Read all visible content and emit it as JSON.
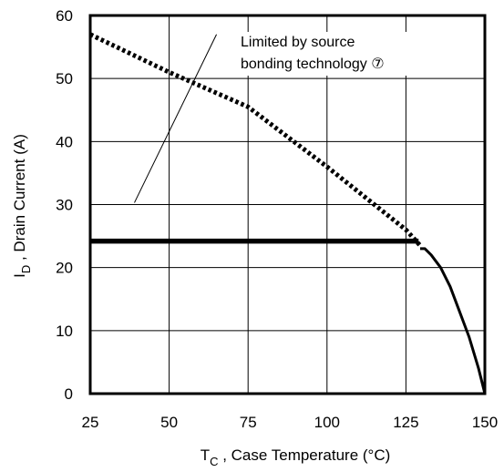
{
  "chart_data": {
    "type": "line",
    "title": "",
    "xlabel": {
      "main": "T",
      "sub": "C",
      "rest": " , Case Temperature (°C)"
    },
    "ylabel": {
      "main": "I",
      "sub": "D",
      "rest": " , Drain Current (A)"
    },
    "xlim": [
      25,
      150
    ],
    "ylim": [
      0,
      60
    ],
    "xticks": [
      25,
      50,
      75,
      100,
      125,
      150
    ],
    "yticks": [
      0,
      10,
      20,
      30,
      40,
      50,
      60
    ],
    "grid": true,
    "series": [
      {
        "style": "dotted",
        "x": [
          25,
          50,
          75,
          100,
          125,
          129.5
        ],
        "y": [
          57,
          51,
          45.5,
          36,
          26,
          23.5
        ]
      },
      {
        "style": "solid-thick",
        "x": [
          25,
          129
        ],
        "y": [
          24.2,
          24.2
        ]
      },
      {
        "style": "solid",
        "x": [
          129.5,
          131,
          133,
          136,
          139,
          142,
          145,
          148,
          150
        ],
        "y": [
          23,
          23,
          22,
          20,
          17,
          13,
          9,
          4,
          0
        ]
      }
    ],
    "annotations": [
      {
        "lines": [
          "Limited by source",
          "bonding technology ⑦"
        ],
        "pointer_from": [
          39,
          30.3
        ],
        "pointer_to": [
          65,
          57
        ]
      }
    ]
  }
}
